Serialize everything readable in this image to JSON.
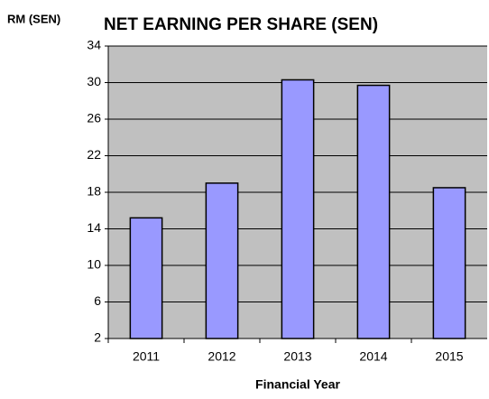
{
  "chart_data": {
    "type": "bar",
    "title": "NET EARNING PER SHARE (SEN)",
    "y_label": "RM (SEN)",
    "x_label": "Financial Year",
    "categories": [
      "2011",
      "2012",
      "2013",
      "2014",
      "2015"
    ],
    "values": [
      15.2,
      19,
      30.3,
      29.7,
      18.5
    ],
    "color": "#9999ff",
    "ylim": [
      2,
      34
    ],
    "yticks": [
      2,
      6,
      10,
      14,
      18,
      22,
      26,
      30,
      34
    ],
    "grid": true
  }
}
